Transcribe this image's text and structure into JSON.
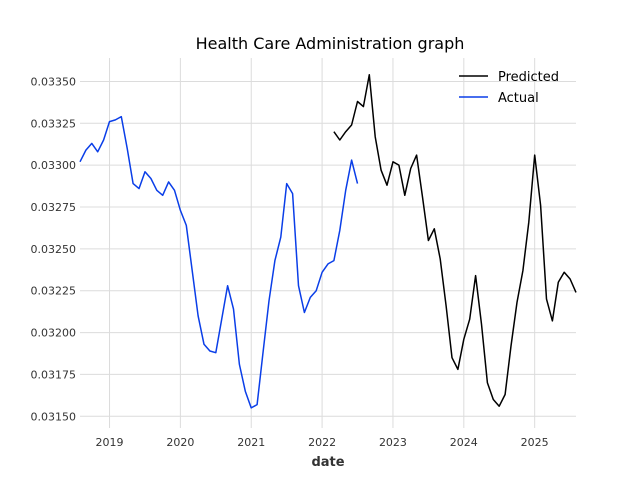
{
  "chart_data": {
    "type": "line",
    "title": "Health Care Administration graph",
    "xlabel": "date",
    "ylabel": "",
    "x_ticks": [
      "2019",
      "2020",
      "2021",
      "2022",
      "2023",
      "2024",
      "2025"
    ],
    "y_ticks": [
      "0.03150",
      "0.03175",
      "0.03200",
      "0.03225",
      "0.03250",
      "0.03275",
      "0.03300",
      "0.03325",
      "0.03350"
    ],
    "xlim": [
      "2018-08",
      "2025-08"
    ],
    "ylim": [
      0.03143,
      0.03364
    ],
    "grid": true,
    "legend_position": "top-right",
    "series": [
      {
        "name": "Predicted",
        "color": "#000000",
        "x": [
          "2022-03",
          "2022-04",
          "2022-05",
          "2022-06",
          "2022-07",
          "2022-08",
          "2022-09",
          "2022-10",
          "2022-11",
          "2022-12",
          "2023-01",
          "2023-02",
          "2023-03",
          "2023-04",
          "2023-05",
          "2023-06",
          "2023-07",
          "2023-08",
          "2023-09",
          "2023-10",
          "2023-11",
          "2023-12",
          "2024-01",
          "2024-02",
          "2024-03",
          "2024-04",
          "2024-05",
          "2024-06",
          "2024-07",
          "2024-08",
          "2024-09",
          "2024-10",
          "2024-11",
          "2024-12",
          "2025-01",
          "2025-02",
          "2025-03",
          "2025-04",
          "2025-05",
          "2025-06",
          "2025-07",
          "2025-08"
        ],
        "values": [
          0.0332,
          0.03315,
          0.0332,
          0.03324,
          0.03338,
          0.03335,
          0.03354,
          0.03317,
          0.03297,
          0.03288,
          0.03302,
          0.033,
          0.03282,
          0.03298,
          0.03306,
          0.03281,
          0.03255,
          0.03262,
          0.03244,
          0.03216,
          0.03185,
          0.03178,
          0.03196,
          0.03208,
          0.03234,
          0.03205,
          0.0317,
          0.0316,
          0.03156,
          0.03163,
          0.03192,
          0.03218,
          0.03237,
          0.03266,
          0.03306,
          0.03276,
          0.0322,
          0.03207,
          0.0323,
          0.03236,
          0.03232,
          0.03224
        ]
      },
      {
        "name": "Actual",
        "color": "#0a3ee8",
        "x": [
          "2018-08",
          "2018-09",
          "2018-10",
          "2018-11",
          "2018-12",
          "2019-01",
          "2019-02",
          "2019-03",
          "2019-04",
          "2019-05",
          "2019-06",
          "2019-07",
          "2019-08",
          "2019-09",
          "2019-10",
          "2019-11",
          "2019-12",
          "2020-01",
          "2020-02",
          "2020-03",
          "2020-04",
          "2020-05",
          "2020-06",
          "2020-07",
          "2020-08",
          "2020-09",
          "2020-10",
          "2020-11",
          "2020-12",
          "2021-01",
          "2021-02",
          "2021-03",
          "2021-04",
          "2021-05",
          "2021-06",
          "2021-07",
          "2021-08",
          "2021-09",
          "2021-10",
          "2021-11",
          "2021-12",
          "2022-01",
          "2022-02",
          "2022-03",
          "2022-04",
          "2022-05",
          "2022-06",
          "2022-07"
        ],
        "values": [
          0.03302,
          0.03309,
          0.03313,
          0.03308,
          0.03315,
          0.03326,
          0.03327,
          0.03329,
          0.0331,
          0.03289,
          0.03286,
          0.03296,
          0.03292,
          0.03285,
          0.03282,
          0.0329,
          0.03285,
          0.03273,
          0.03264,
          0.03237,
          0.0321,
          0.03193,
          0.03189,
          0.03188,
          0.03208,
          0.03228,
          0.03214,
          0.03181,
          0.03165,
          0.03155,
          0.03157,
          0.03188,
          0.03219,
          0.03243,
          0.03257,
          0.03289,
          0.03283,
          0.03228,
          0.03212,
          0.03221,
          0.03225,
          0.03236,
          0.03241,
          0.03243,
          0.03261,
          0.03285,
          0.03303,
          0.03289
        ]
      }
    ]
  }
}
